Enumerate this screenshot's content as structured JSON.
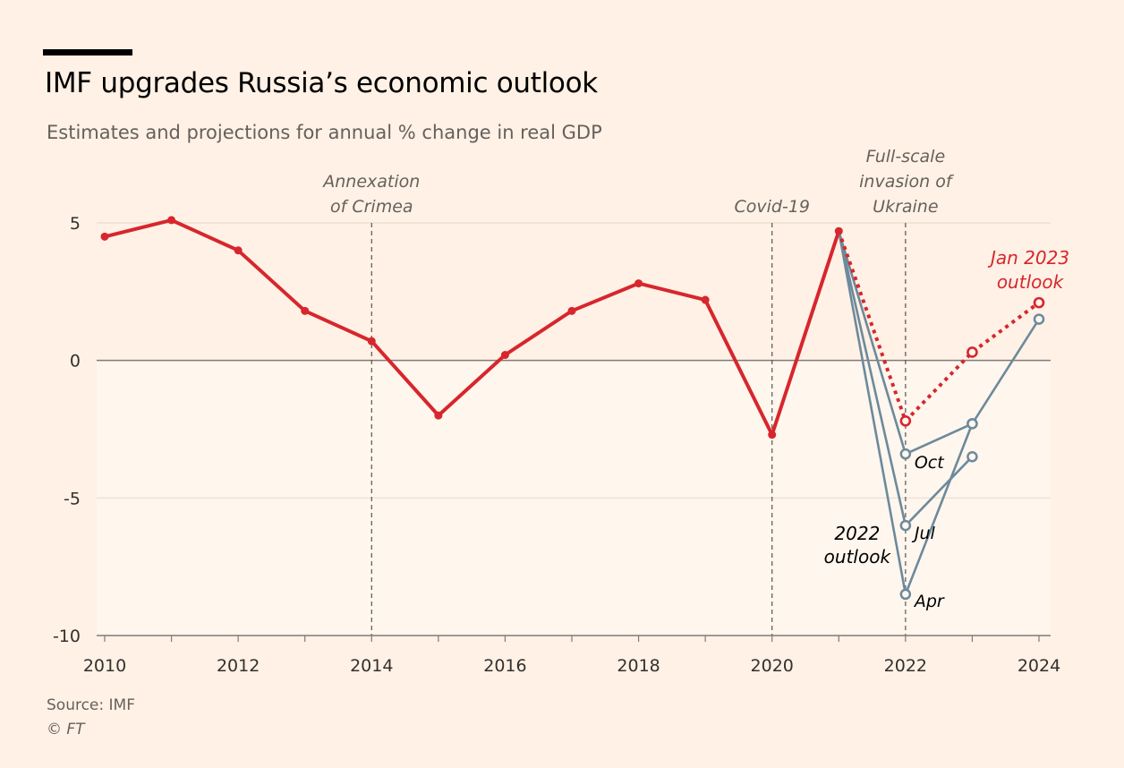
{
  "header": {
    "title": "IMF upgrades Russia’s economic outlook",
    "subtitle": "Estimates and projections for annual % change in real GDP"
  },
  "footer": {
    "source": "Source: IMF",
    "copyright": "© FT"
  },
  "chart_data": {
    "type": "line",
    "xlim": [
      2010,
      2024
    ],
    "ylim": [
      -10,
      5
    ],
    "x_ticks": [
      "2010",
      "2012",
      "2014",
      "2016",
      "2018",
      "2020",
      "2022",
      "2024"
    ],
    "y_ticks": [
      "5",
      "0",
      "-5",
      "-10"
    ],
    "grid": true,
    "colors": {
      "estimates": "#d7262d",
      "outlook_2022": "#6c8a9b",
      "axis": "#7f7b78",
      "grid": "#e8dccf",
      "event_line": "#58534f",
      "label": "#66605c"
    },
    "series": [
      {
        "key": "estimates",
        "style": "solid",
        "points": [
          [
            2010,
            4.5
          ],
          [
            2011,
            5.1
          ],
          [
            2012,
            4.0
          ],
          [
            2013,
            1.8
          ],
          [
            2014,
            0.7
          ],
          [
            2015,
            -2.0
          ],
          [
            2016,
            0.2
          ],
          [
            2017,
            1.8
          ],
          [
            2018,
            2.8
          ],
          [
            2019,
            2.2
          ],
          [
            2020,
            -2.7
          ],
          [
            2021,
            4.7
          ]
        ]
      },
      {
        "key": "jan2023",
        "style": "dotted",
        "points": [
          [
            2021,
            4.7
          ],
          [
            2022,
            -2.2
          ],
          [
            2023,
            0.3
          ],
          [
            2024,
            2.1
          ]
        ]
      },
      {
        "key": "oct2022",
        "style": "outlook",
        "points": [
          [
            2021,
            4.7
          ],
          [
            2022,
            -3.4
          ],
          [
            2023,
            -2.3
          ],
          [
            2024,
            1.5
          ]
        ]
      },
      {
        "key": "jul2022",
        "style": "outlook",
        "points": [
          [
            2021,
            4.7
          ],
          [
            2022,
            -6.0
          ],
          [
            2023,
            -3.5
          ]
        ]
      },
      {
        "key": "apr2022",
        "style": "outlook",
        "points": [
          [
            2021,
            4.7
          ],
          [
            2022,
            -8.5
          ],
          [
            2023,
            -2.3
          ]
        ]
      }
    ],
    "events": [
      {
        "x": 2014,
        "lines": [
          "Annexation",
          "of Crimea"
        ]
      },
      {
        "x": 2020,
        "lines": [
          "Covid-19"
        ]
      },
      {
        "x": 2022,
        "lines": [
          "Full-scale",
          "invasion of",
          "Ukraine"
        ]
      }
    ],
    "annotations": {
      "jan2023": [
        "Jan 2023",
        "outlook"
      ],
      "oct": "Oct",
      "jul": "Jul",
      "apr": "Apr",
      "outlook2022": [
        "2022",
        "outlook"
      ]
    }
  }
}
